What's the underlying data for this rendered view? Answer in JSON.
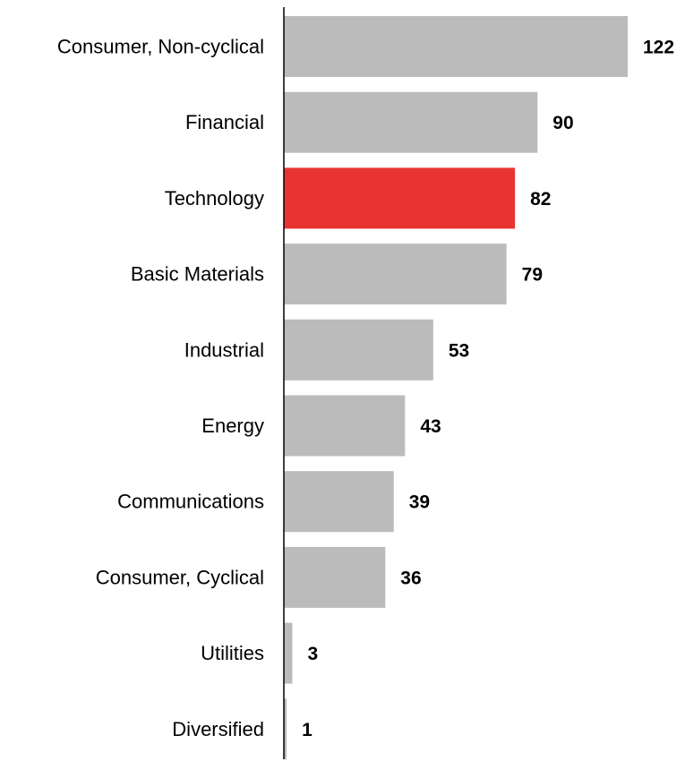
{
  "chart_data": {
    "type": "bar",
    "orientation": "horizontal",
    "categories": [
      "Consumer, Non-cyclical",
      "Financial",
      "Technology",
      "Basic Materials",
      "Industrial",
      "Energy",
      "Communications",
      "Consumer, Cyclical",
      "Utilities",
      "Diversified"
    ],
    "values": [
      122,
      90,
      82,
      79,
      53,
      43,
      39,
      36,
      3,
      1
    ],
    "value_labels": [
      "122",
      "90",
      "82",
      "79",
      "53",
      "43",
      "39",
      "36",
      "3",
      "1"
    ],
    "highlight_index": 2,
    "colors": {
      "bar": "#bbbbbb",
      "highlight": "#e73431",
      "axis": "#000000",
      "text": "#000000"
    },
    "title": "",
    "xlabel": "",
    "ylabel": "",
    "xlim": [
      0,
      122
    ],
    "grid": false,
    "legend": "none",
    "data_labels": "outside-end-bold"
  }
}
